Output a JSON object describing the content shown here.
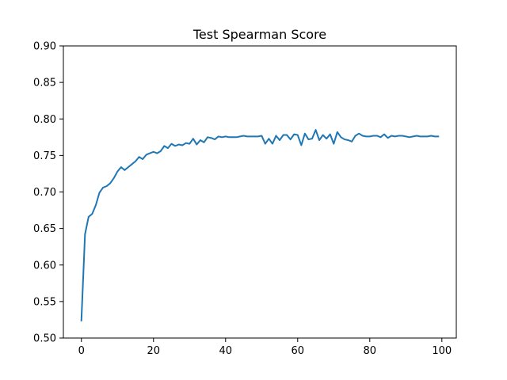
{
  "chart_data": {
    "type": "line",
    "title": "Test Spearman Score",
    "xlabel": "",
    "ylabel": "",
    "xlim": [
      -5,
      104
    ],
    "ylim": [
      0.5,
      0.9
    ],
    "x_ticks": [
      0,
      20,
      40,
      60,
      80,
      100
    ],
    "y_ticks": [
      0.5,
      0.55,
      0.6,
      0.65,
      0.7,
      0.75,
      0.8,
      0.85,
      0.9
    ],
    "x_tick_labels": [
      "0",
      "20",
      "40",
      "60",
      "80",
      "100"
    ],
    "y_tick_labels": [
      "0.50",
      "0.55",
      "0.60",
      "0.65",
      "0.70",
      "0.75",
      "0.80",
      "0.85",
      "0.90"
    ],
    "grid": false,
    "series": [
      {
        "color": "#1f77b4",
        "x": [
          0,
          1,
          2,
          3,
          4,
          5,
          6,
          7,
          8,
          9,
          10,
          11,
          12,
          13,
          14,
          15,
          16,
          17,
          18,
          19,
          20,
          21,
          22,
          23,
          24,
          25,
          26,
          27,
          28,
          29,
          30,
          31,
          32,
          33,
          34,
          35,
          36,
          37,
          38,
          39,
          40,
          41,
          42,
          43,
          44,
          45,
          46,
          47,
          48,
          49,
          50,
          51,
          52,
          53,
          54,
          55,
          56,
          57,
          58,
          59,
          60,
          61,
          62,
          63,
          64,
          65,
          66,
          67,
          68,
          69,
          70,
          71,
          72,
          73,
          74,
          75,
          76,
          77,
          78,
          79,
          80,
          81,
          82,
          83,
          84,
          85,
          86,
          87,
          88,
          89,
          90,
          91,
          92,
          93,
          94,
          95,
          96,
          97,
          98,
          99
        ],
        "values": [
          0.524,
          0.642,
          0.666,
          0.67,
          0.682,
          0.699,
          0.706,
          0.708,
          0.712,
          0.719,
          0.728,
          0.734,
          0.73,
          0.734,
          0.738,
          0.742,
          0.748,
          0.745,
          0.751,
          0.753,
          0.755,
          0.753,
          0.756,
          0.763,
          0.76,
          0.766,
          0.763,
          0.765,
          0.764,
          0.767,
          0.766,
          0.773,
          0.765,
          0.771,
          0.768,
          0.775,
          0.774,
          0.772,
          0.776,
          0.775,
          0.776,
          0.775,
          0.775,
          0.775,
          0.776,
          0.777,
          0.776,
          0.776,
          0.776,
          0.776,
          0.777,
          0.766,
          0.773,
          0.766,
          0.777,
          0.771,
          0.778,
          0.778,
          0.772,
          0.779,
          0.778,
          0.764,
          0.78,
          0.772,
          0.773,
          0.785,
          0.771,
          0.778,
          0.773,
          0.779,
          0.766,
          0.782,
          0.775,
          0.772,
          0.771,
          0.769,
          0.777,
          0.78,
          0.777,
          0.776,
          0.776,
          0.777,
          0.777,
          0.775,
          0.779,
          0.774,
          0.777,
          0.776,
          0.777,
          0.777,
          0.776,
          0.775,
          0.776,
          0.777,
          0.776,
          0.776,
          0.776,
          0.777,
          0.776,
          0.776
        ]
      }
    ]
  }
}
